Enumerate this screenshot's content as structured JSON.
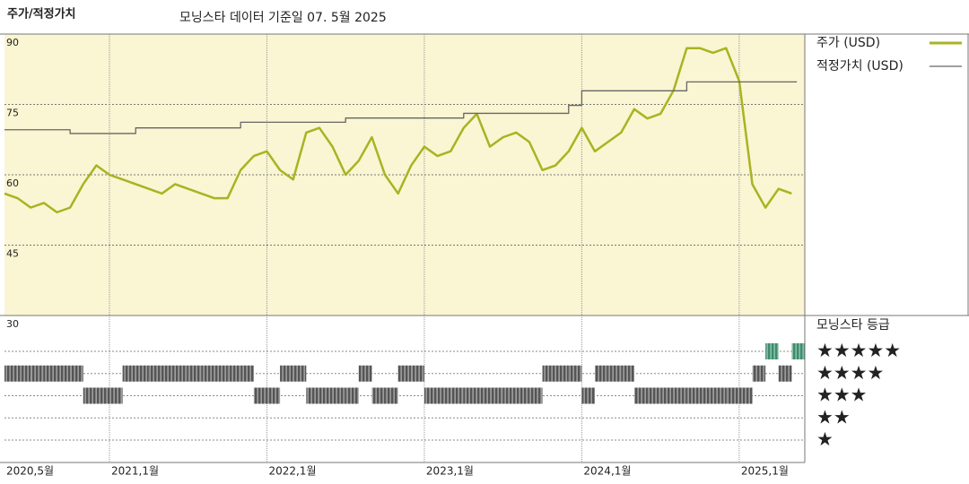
{
  "chart_data": {
    "type": "line",
    "title": "주가/적정가치",
    "subtitle": "모닝스타 데이터 기준일 07. 5월 2025",
    "x": [
      "2020-05",
      "2020-06",
      "2020-07",
      "2020-08",
      "2020-09",
      "2020-10",
      "2020-11",
      "2020-12",
      "2021-01",
      "2021-02",
      "2021-03",
      "2021-04",
      "2021-05",
      "2021-06",
      "2021-07",
      "2021-08",
      "2021-09",
      "2021-10",
      "2021-11",
      "2021-12",
      "2022-01",
      "2022-02",
      "2022-03",
      "2022-04",
      "2022-05",
      "2022-06",
      "2022-07",
      "2022-08",
      "2022-09",
      "2022-10",
      "2022-11",
      "2022-12",
      "2023-01",
      "2023-02",
      "2023-03",
      "2023-04",
      "2023-05",
      "2023-06",
      "2023-07",
      "2023-08",
      "2023-09",
      "2023-10",
      "2023-11",
      "2023-12",
      "2024-01",
      "2024-02",
      "2024-03",
      "2024-04",
      "2024-05",
      "2024-06",
      "2024-07",
      "2024-08",
      "2024-09",
      "2024-10",
      "2024-11",
      "2024-12",
      "2025-01",
      "2025-02",
      "2025-03",
      "2025-04",
      "2025-05"
    ],
    "series": [
      {
        "name": "주가 (USD)",
        "color": "#a9b322",
        "style": "line",
        "values": [
          56,
          55,
          53,
          54,
          52,
          53,
          58,
          62,
          60,
          59,
          58,
          57,
          56,
          58,
          57,
          56,
          55,
          55,
          61,
          64,
          65,
          61,
          59,
          69,
          70,
          66,
          60,
          63,
          68,
          60,
          56,
          62,
          66,
          64,
          65,
          70,
          73,
          66,
          68,
          69,
          67,
          61,
          62,
          65,
          70,
          65,
          67,
          69,
          74,
          72,
          73,
          78,
          87,
          87,
          86,
          87,
          80,
          58,
          53,
          57,
          56
        ]
      },
      {
        "name": "적정가치 (USD)",
        "color": "#666666",
        "style": "step",
        "values": [
          69.6,
          69.6,
          69.6,
          69.6,
          69.6,
          68.8,
          68.8,
          68.8,
          68.8,
          68.8,
          70,
          70,
          70,
          70,
          70,
          70,
          70,
          70,
          71.2,
          71.2,
          71.2,
          71.2,
          71.2,
          71.2,
          71.2,
          71.2,
          72.1,
          72.1,
          72.1,
          72.1,
          72.1,
          72.1,
          72.1,
          72.1,
          72.1,
          73.1,
          73.1,
          73.1,
          73.1,
          73.1,
          73.1,
          73.1,
          73.1,
          74.8,
          77.9,
          77.9,
          77.9,
          77.9,
          77.9,
          77.9,
          77.9,
          77.9,
          79.8,
          79.8,
          79.8,
          79.8,
          79.8,
          79.8,
          79.8,
          79.8,
          79.8
        ]
      }
    ],
    "xlim": [
      "2020-05",
      "2025-06"
    ],
    "xticks": [
      {
        "value": "2020-05",
        "label": "2020,5월"
      },
      {
        "value": "2021-01",
        "label": "2021,1월"
      },
      {
        "value": "2022-01",
        "label": "2022,1월"
      },
      {
        "value": "2023-01",
        "label": "2023,1월"
      },
      {
        "value": "2024-01",
        "label": "2024,1월"
      },
      {
        "value": "2025-01",
        "label": "2025,1월"
      }
    ],
    "ylim": [
      30,
      90
    ],
    "yticks": [
      30,
      45,
      60,
      75,
      90
    ],
    "grid": true,
    "rating_title": "모닝스타 등급",
    "rating_labels": [
      "★",
      "★★",
      "★★★",
      "★★★★",
      "★★★★★"
    ],
    "ratings": [
      4,
      4,
      4,
      4,
      4,
      4,
      3,
      3,
      3,
      4,
      4,
      4,
      4,
      4,
      4,
      4,
      4,
      4,
      4,
      3,
      3,
      4,
      4,
      3,
      3,
      3,
      3,
      4,
      3,
      3,
      4,
      4,
      3,
      3,
      3,
      3,
      3,
      3,
      3,
      3,
      3,
      4,
      4,
      4,
      3,
      4,
      4,
      4,
      3,
      3,
      3,
      3,
      3,
      3,
      3,
      3,
      3,
      4,
      5,
      4,
      5
    ]
  }
}
